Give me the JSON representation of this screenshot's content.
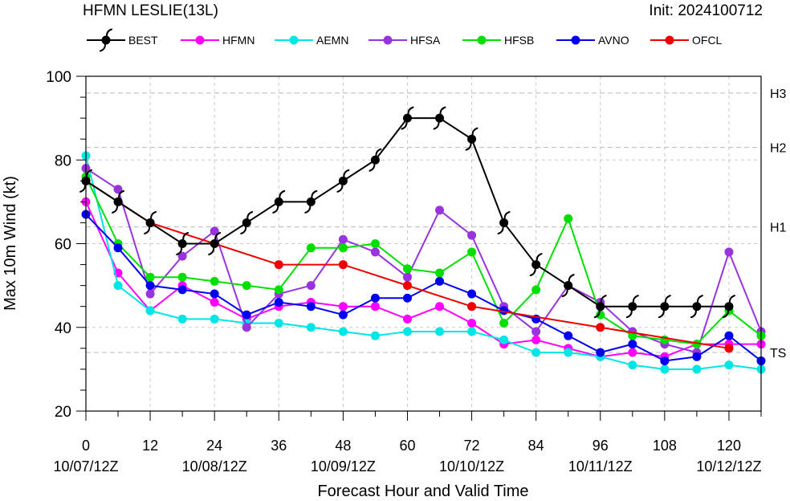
{
  "chart_data": {
    "type": "line",
    "title": "HFMN LESLIE(13L)",
    "init_text": "Init: 2024100712",
    "xlabel": "Forecast Hour and Valid Time",
    "ylabel": "Max 10m Wind (kt)",
    "xlim": [
      0,
      126
    ],
    "ylim": [
      20,
      100
    ],
    "grid": true,
    "legend_position": "top",
    "x_ticks": [
      0,
      12,
      24,
      36,
      48,
      60,
      72,
      84,
      96,
      108,
      120
    ],
    "y_ticks": [
      20,
      40,
      60,
      80,
      100
    ],
    "date_ticks": [
      {
        "x": 0,
        "label": "10/07/12Z"
      },
      {
        "x": 24,
        "label": "10/08/12Z"
      },
      {
        "x": 48,
        "label": "10/09/12Z"
      },
      {
        "x": 72,
        "label": "10/10/12Z"
      },
      {
        "x": 96,
        "label": "10/11/12Z"
      },
      {
        "x": 120,
        "label": "10/12/12Z"
      }
    ],
    "intensity_lines": [
      {
        "y": 96,
        "label": "H3"
      },
      {
        "y": 83,
        "label": "H2"
      },
      {
        "y": 64,
        "label": "H1"
      },
      {
        "y": 34,
        "label": "TS"
      }
    ],
    "series": [
      {
        "name": "BEST",
        "color": "#000000",
        "marker": "hurricane-icon",
        "x": [
          0,
          6,
          12,
          18,
          24,
          30,
          36,
          42,
          48,
          54,
          60,
          66,
          72,
          78,
          84,
          90,
          96,
          102,
          108,
          114,
          120
        ],
        "y": [
          75,
          70,
          65,
          60,
          60,
          65,
          70,
          70,
          75,
          80,
          90,
          90,
          85,
          65,
          55,
          50,
          45,
          45,
          45,
          45,
          45
        ]
      },
      {
        "name": "HFMN",
        "color": "#ff00ff",
        "marker": "circle",
        "x": [
          0,
          6,
          12,
          18,
          24,
          30,
          36,
          42,
          48,
          54,
          60,
          66,
          72,
          78,
          84,
          90,
          96,
          102,
          108,
          114,
          120,
          126
        ],
        "y": [
          70,
          53,
          44,
          50,
          46,
          42,
          45,
          46,
          45,
          45,
          42,
          45,
          41,
          36,
          37,
          35,
          33,
          34,
          33,
          36,
          36,
          36
        ]
      },
      {
        "name": "AEMN",
        "color": "#00e5e5",
        "marker": "circle",
        "x": [
          0,
          6,
          12,
          18,
          24,
          30,
          36,
          42,
          48,
          54,
          60,
          66,
          72,
          78,
          84,
          90,
          96,
          102,
          108,
          114,
          120,
          126
        ],
        "y": [
          81,
          50,
          44,
          42,
          42,
          41,
          41,
          40,
          39,
          38,
          39,
          39,
          39,
          37,
          34,
          34,
          33,
          31,
          30,
          30,
          31,
          30
        ]
      },
      {
        "name": "HFSA",
        "color": "#9933dd",
        "marker": "circle",
        "x": [
          0,
          6,
          12,
          18,
          24,
          30,
          36,
          42,
          48,
          54,
          60,
          66,
          72,
          78,
          84,
          90,
          96,
          102,
          108,
          114,
          120,
          126
        ],
        "y": [
          78,
          73,
          48,
          57,
          63,
          40,
          48,
          50,
          61,
          58,
          52,
          68,
          62,
          45,
          39,
          50,
          46,
          39,
          36,
          34,
          58,
          39
        ]
      },
      {
        "name": "HFSB",
        "color": "#00e000",
        "marker": "circle",
        "x": [
          0,
          6,
          12,
          18,
          24,
          30,
          36,
          42,
          48,
          54,
          60,
          66,
          72,
          78,
          84,
          90,
          96,
          102,
          108,
          114,
          120,
          126
        ],
        "y": [
          76,
          60,
          52,
          52,
          51,
          50,
          49,
          59,
          59,
          60,
          54,
          53,
          58,
          41,
          49,
          66,
          43,
          38,
          37,
          36,
          44,
          38
        ]
      },
      {
        "name": "AVNO",
        "color": "#0000ee",
        "marker": "circle",
        "x": [
          0,
          6,
          12,
          18,
          24,
          30,
          36,
          42,
          48,
          54,
          60,
          66,
          72,
          78,
          84,
          90,
          96,
          102,
          108,
          114,
          120,
          126
        ],
        "y": [
          67,
          59,
          50,
          49,
          48,
          43,
          46,
          45,
          43,
          47,
          47,
          51,
          48,
          44,
          42,
          38,
          34,
          36,
          32,
          33,
          38,
          32
        ]
      },
      {
        "name": "OFCL",
        "color": "#ee0000",
        "marker": "circle",
        "x": [
          0,
          12,
          36,
          48,
          60,
          72,
          96,
          120
        ],
        "y": [
          75,
          65,
          55,
          55,
          50,
          45,
          40,
          35
        ]
      }
    ]
  }
}
